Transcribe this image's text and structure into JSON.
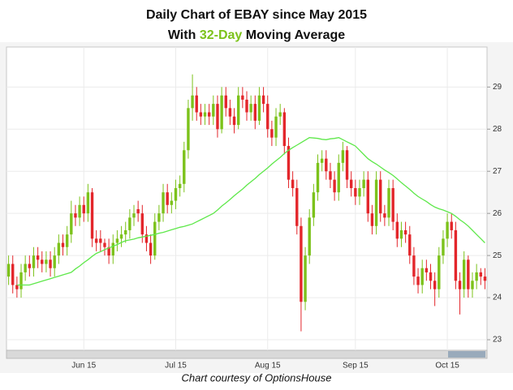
{
  "chart_data": {
    "type": "candlestick",
    "title": "Daily Chart of EBAY since May 2015",
    "subtitle_parts": [
      "With",
      "32-Day",
      "Moving Average"
    ],
    "footer": "Chart courtesy of OptionsHouse",
    "up_color": "#7cc21b",
    "down_color": "#e3262b",
    "ylim": [
      22.75,
      29.95
    ],
    "yticks": [
      23,
      24,
      25,
      26,
      27,
      28,
      29
    ],
    "grid": true,
    "categories": [
      null,
      null,
      null,
      null,
      null,
      null,
      null,
      null,
      null,
      null,
      null,
      null,
      null,
      null,
      null,
      null,
      null,
      null,
      "Jun 15",
      null,
      null,
      null,
      null,
      null,
      null,
      null,
      null,
      null,
      null,
      null,
      null,
      null,
      null,
      null,
      null,
      null,
      null,
      null,
      null,
      null,
      "Jul 15",
      null,
      null,
      null,
      null,
      null,
      null,
      null,
      null,
      null,
      null,
      null,
      null,
      null,
      null,
      null,
      null,
      null,
      null,
      null,
      null,
      null,
      "Aug 15",
      null,
      null,
      null,
      null,
      null,
      null,
      null,
      null,
      null,
      null,
      null,
      null,
      null,
      null,
      null,
      null,
      null,
      null,
      null,
      null,
      "Sep 15",
      null,
      null,
      null,
      null,
      null,
      null,
      null,
      null,
      null,
      null,
      null,
      null,
      null,
      null,
      null,
      null,
      null,
      null,
      null,
      null,
      null,
      "Oct 15",
      null,
      null,
      null,
      null,
      null,
      null,
      null,
      null,
      null
    ],
    "ohlc": [
      [
        24.5,
        25.0,
        24.3,
        24.8
      ],
      [
        24.8,
        25.0,
        24.1,
        24.3
      ],
      [
        24.3,
        24.5,
        24.0,
        24.2
      ],
      [
        24.2,
        24.8,
        24.0,
        24.6
      ],
      [
        24.6,
        25.0,
        24.4,
        24.8
      ],
      [
        24.8,
        25.0,
        24.5,
        24.7
      ],
      [
        24.7,
        25.2,
        24.5,
        25.0
      ],
      [
        25.0,
        25.2,
        24.7,
        24.9
      ],
      [
        24.9,
        25.1,
        24.6,
        24.8
      ],
      [
        24.8,
        25.1,
        24.6,
        24.9
      ],
      [
        24.9,
        25.1,
        24.5,
        24.7
      ],
      [
        24.7,
        25.2,
        24.5,
        25.0
      ],
      [
        25.0,
        25.5,
        24.8,
        25.3
      ],
      [
        25.3,
        25.5,
        25.0,
        25.2
      ],
      [
        25.2,
        25.7,
        25.0,
        25.5
      ],
      [
        25.5,
        26.3,
        25.3,
        26.0
      ],
      [
        26.0,
        26.2,
        25.7,
        25.9
      ],
      [
        25.9,
        26.4,
        25.7,
        26.2
      ],
      [
        26.2,
        26.4,
        25.8,
        26.0
      ],
      [
        26.0,
        26.7,
        25.8,
        26.5
      ],
      [
        26.5,
        26.6,
        25.2,
        25.4
      ],
      [
        25.4,
        25.6,
        25.1,
        25.3
      ],
      [
        25.4,
        25.6,
        25.1,
        25.3
      ],
      [
        25.3,
        25.4,
        25.0,
        25.2
      ],
      [
        25.2,
        25.4,
        24.8,
        25.0
      ],
      [
        25.0,
        25.5,
        24.8,
        25.3
      ],
      [
        25.3,
        25.6,
        25.1,
        25.4
      ],
      [
        25.4,
        25.7,
        25.2,
        25.5
      ],
      [
        25.5,
        25.8,
        25.3,
        25.6
      ],
      [
        25.6,
        26.1,
        25.4,
        25.9
      ],
      [
        25.9,
        26.2,
        25.7,
        26.0
      ],
      [
        26.1,
        26.3,
        25.8,
        26.0
      ],
      [
        26.0,
        26.2,
        25.3,
        25.5
      ],
      [
        25.5,
        25.7,
        25.1,
        25.3
      ],
      [
        25.3,
        25.5,
        24.8,
        25.0
      ],
      [
        25.0,
        26.0,
        24.9,
        25.8
      ],
      [
        25.8,
        26.2,
        25.6,
        26.0
      ],
      [
        26.0,
        26.7,
        25.8,
        26.5
      ],
      [
        26.5,
        26.7,
        26.0,
        26.2
      ],
      [
        26.2,
        26.5,
        26.0,
        26.3
      ],
      [
        26.3,
        26.8,
        26.1,
        26.6
      ],
      [
        26.6,
        26.9,
        26.4,
        26.7
      ],
      [
        26.7,
        27.7,
        26.5,
        27.5
      ],
      [
        27.5,
        28.7,
        27.3,
        28.5
      ],
      [
        28.5,
        29.3,
        28.2,
        28.8
      ],
      [
        28.8,
        29.0,
        28.2,
        28.4
      ],
      [
        28.4,
        28.6,
        28.1,
        28.3
      ],
      [
        28.3,
        28.6,
        28.1,
        28.4
      ],
      [
        28.4,
        28.6,
        28.1,
        28.3
      ],
      [
        28.3,
        28.8,
        28.1,
        28.6
      ],
      [
        28.6,
        28.8,
        27.8,
        28.0
      ],
      [
        28.0,
        29.0,
        27.9,
        28.8
      ],
      [
        28.8,
        29.0,
        28.3,
        28.5
      ],
      [
        28.5,
        28.7,
        28.1,
        28.3
      ],
      [
        28.3,
        28.5,
        27.9,
        28.1
      ],
      [
        28.1,
        29.0,
        28.0,
        28.8
      ],
      [
        28.8,
        29.0,
        28.5,
        28.7
      ],
      [
        28.7,
        28.9,
        28.2,
        28.4
      ],
      [
        28.4,
        28.8,
        28.2,
        28.6
      ],
      [
        28.6,
        28.8,
        28.0,
        28.2
      ],
      [
        28.2,
        29.0,
        28.1,
        28.8
      ],
      [
        28.8,
        29.0,
        28.4,
        28.6
      ],
      [
        28.6,
        28.8,
        27.8,
        28.0
      ],
      [
        28.0,
        28.2,
        27.6,
        27.8
      ],
      [
        27.8,
        28.5,
        27.6,
        28.3
      ],
      [
        28.3,
        28.6,
        28.1,
        28.4
      ],
      [
        28.4,
        28.5,
        27.4,
        27.6
      ],
      [
        27.6,
        27.8,
        26.6,
        26.8
      ],
      [
        26.8,
        27.0,
        26.4,
        26.6
      ],
      [
        26.6,
        26.8,
        25.5,
        25.7
      ],
      [
        25.7,
        25.9,
        23.2,
        23.9
      ],
      [
        23.9,
        25.2,
        23.7,
        25.0
      ],
      [
        25.0,
        26.1,
        24.8,
        25.9
      ],
      [
        25.9,
        26.7,
        25.7,
        26.5
      ],
      [
        26.5,
        27.4,
        26.3,
        27.2
      ],
      [
        27.2,
        27.5,
        27.0,
        27.3
      ],
      [
        27.3,
        27.5,
        26.8,
        27.0
      ],
      [
        27.0,
        27.2,
        26.6,
        26.8
      ],
      [
        26.8,
        27.0,
        26.3,
        26.5
      ],
      [
        26.5,
        27.4,
        26.3,
        27.2
      ],
      [
        27.2,
        27.7,
        27.0,
        27.5
      ],
      [
        27.5,
        27.6,
        26.6,
        26.8
      ],
      [
        26.8,
        27.0,
        26.4,
        26.6
      ],
      [
        26.6,
        26.8,
        26.2,
        26.4
      ],
      [
        26.4,
        26.8,
        26.2,
        26.6
      ],
      [
        26.6,
        27.0,
        26.4,
        26.8
      ],
      [
        26.8,
        27.0,
        25.8,
        26.0
      ],
      [
        26.0,
        26.2,
        25.5,
        25.7
      ],
      [
        25.7,
        27.0,
        25.5,
        26.8
      ],
      [
        26.8,
        27.0,
        25.8,
        26.0
      ],
      [
        26.0,
        26.2,
        25.7,
        25.9
      ],
      [
        25.9,
        26.8,
        25.7,
        26.6
      ],
      [
        26.6,
        26.8,
        25.6,
        25.8
      ],
      [
        25.8,
        26.0,
        25.2,
        25.4
      ],
      [
        25.4,
        25.8,
        25.2,
        25.6
      ],
      [
        25.6,
        25.8,
        25.3,
        25.5
      ],
      [
        25.5,
        25.7,
        24.8,
        25.0
      ],
      [
        25.0,
        25.2,
        24.3,
        24.5
      ],
      [
        24.5,
        24.7,
        24.1,
        24.3
      ],
      [
        24.3,
        24.9,
        24.1,
        24.7
      ],
      [
        24.7,
        24.9,
        24.4,
        24.6
      ],
      [
        24.6,
        24.8,
        24.2,
        24.4
      ],
      [
        24.4,
        24.6,
        23.8,
        24.2
      ],
      [
        24.2,
        25.2,
        24.0,
        25.0
      ],
      [
        25.0,
        25.6,
        24.8,
        25.4
      ],
      [
        25.4,
        26.0,
        25.2,
        25.8
      ],
      [
        25.8,
        26.0,
        25.4,
        25.6
      ],
      [
        25.6,
        25.8,
        24.2,
        24.4
      ],
      [
        24.4,
        24.6,
        23.6,
        24.2
      ],
      [
        24.2,
        25.1,
        24.0,
        24.9
      ],
      [
        24.9,
        25.0,
        24.0,
        24.2
      ],
      [
        24.2,
        24.6,
        24.0,
        24.4
      ],
      [
        24.4,
        24.8,
        24.2,
        24.6
      ],
      [
        24.6,
        24.7,
        24.3,
        24.5
      ],
      [
        24.5,
        24.7,
        24.2,
        24.4
      ]
    ],
    "moving_average": {
      "color": "#5ee84a",
      "values": [
        null,
        null,
        24.3,
        24.3,
        24.3,
        24.3,
        24.33,
        24.36,
        24.39,
        24.42,
        24.45,
        24.48,
        24.51,
        24.54,
        24.57,
        24.6,
        24.68,
        24.75,
        24.83,
        24.9,
        24.98,
        25.05,
        25.09,
        25.14,
        25.18,
        25.22,
        25.26,
        25.31,
        25.35,
        25.37,
        25.39,
        25.42,
        25.44,
        25.46,
        25.48,
        25.5,
        25.53,
        25.55,
        25.58,
        25.61,
        25.64,
        25.67,
        25.69,
        25.72,
        25.75,
        25.8,
        25.85,
        25.9,
        25.95,
        26.0,
        26.08,
        26.17,
        26.25,
        26.33,
        26.42,
        26.5,
        26.58,
        26.67,
        26.75,
        26.83,
        26.92,
        27.0,
        27.08,
        27.17,
        27.25,
        27.33,
        27.42,
        27.5,
        27.56,
        27.62,
        27.68,
        27.74,
        27.8,
        27.79,
        27.78,
        27.76,
        27.75,
        27.77,
        27.78,
        27.8,
        27.75,
        27.7,
        27.65,
        27.6,
        27.5,
        27.4,
        27.3,
        27.23,
        27.17,
        27.1,
        27.03,
        26.97,
        26.9,
        26.82,
        26.73,
        26.65,
        26.57,
        26.48,
        26.4,
        26.34,
        26.28,
        26.21,
        26.15,
        26.11,
        26.08,
        26.04,
        26.0,
        25.93,
        25.85,
        25.78,
        25.7,
        25.6,
        25.5,
        25.4,
        25.3
      ]
    }
  }
}
